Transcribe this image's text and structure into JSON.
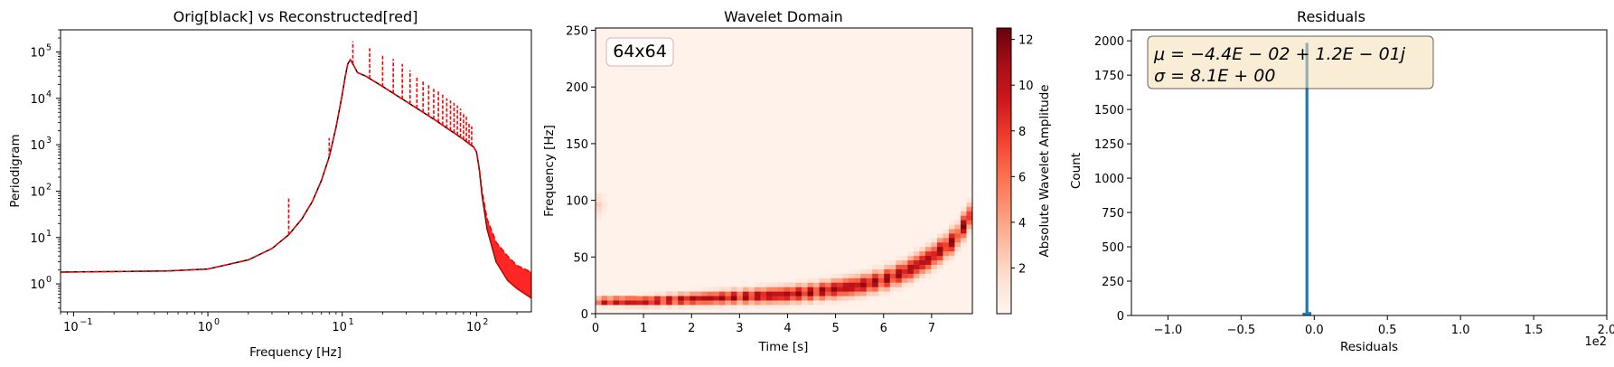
{
  "chart_data": [
    {
      "type": "line",
      "title": "Orig[black] vs Reconstructed[red]",
      "xlabel": "Frequency [Hz]",
      "ylabel": "Periodigram",
      "xscale": "log",
      "yscale": "log",
      "xlim": [
        0.08,
        256
      ],
      "ylim": [
        0.25,
        300000
      ],
      "x_ticks": [
        {
          "v": 0.1,
          "base": "10",
          "exp": "−1"
        },
        {
          "v": 1,
          "base": "10",
          "exp": "0"
        },
        {
          "v": 10,
          "base": "10",
          "exp": "1"
        },
        {
          "v": 100,
          "base": "10",
          "exp": "2"
        }
      ],
      "y_ticks": [
        {
          "v": 1,
          "base": "10",
          "exp": "0"
        },
        {
          "v": 10,
          "base": "10",
          "exp": "1"
        },
        {
          "v": 100,
          "base": "10",
          "exp": "2"
        },
        {
          "v": 1000,
          "base": "10",
          "exp": "3"
        },
        {
          "v": 10000,
          "base": "10",
          "exp": "4"
        },
        {
          "v": 100000,
          "base": "10",
          "exp": "5"
        }
      ],
      "series": [
        {
          "color": "#000000",
          "style": "solid",
          "x": [
            0.08,
            0.5,
            1,
            2,
            3,
            4,
            5,
            6,
            7,
            8,
            9,
            10,
            10.5,
            11,
            11.5,
            12,
            13,
            15,
            20,
            30,
            40,
            50,
            60,
            70,
            80,
            90,
            95,
            100,
            105,
            110,
            120,
            140,
            170,
            200,
            256
          ],
          "y": [
            1.8,
            1.9,
            2.1,
            3.3,
            5.8,
            11.5,
            25,
            60,
            170,
            550,
            2400,
            12000,
            28000,
            55000,
            68000,
            55000,
            36000,
            30000,
            18000,
            8500,
            5000,
            3300,
            2300,
            1700,
            1300,
            1000,
            900,
            700,
            280,
            80,
            15,
            3,
            1.2,
            0.8,
            0.5
          ]
        },
        {
          "color": "#ff0000",
          "style": "dashed",
          "x": [
            0.08,
            0.5,
            1,
            2,
            3,
            4,
            5,
            6,
            7,
            8,
            9,
            10,
            10.5,
            11,
            11.5,
            12,
            13,
            15,
            20,
            30,
            40,
            50,
            60,
            70,
            80,
            90,
            95,
            100,
            105,
            110,
            120,
            140,
            170,
            200,
            256
          ],
          "y": [
            1.8,
            1.9,
            2.1,
            3.3,
            5.8,
            11.5,
            25,
            60,
            170,
            550,
            2400,
            12000,
            28000,
            55000,
            68000,
            55000,
            36000,
            30000,
            18000,
            8500,
            5000,
            3300,
            2300,
            1700,
            1300,
            1000,
            900,
            700,
            300,
            100,
            25,
            8,
            4,
            2.5,
            1.8
          ],
          "spikes": [
            [
              4,
              70
            ],
            [
              8,
              1400
            ],
            [
              12,
              170000
            ],
            [
              16,
              120000
            ],
            [
              20,
              90000
            ],
            [
              24,
              70000
            ],
            [
              28,
              55000
            ],
            [
              32,
              40000
            ],
            [
              36,
              30000
            ],
            [
              40,
              25000
            ],
            [
              44,
              20000
            ],
            [
              48,
              16000
            ],
            [
              52,
              14000
            ],
            [
              56,
              12000
            ],
            [
              60,
              10000
            ],
            [
              64,
              9000
            ],
            [
              68,
              8000
            ],
            [
              72,
              7000
            ],
            [
              76,
              6000
            ],
            [
              80,
              5000
            ],
            [
              84,
              4000
            ],
            [
              88,
              3000
            ],
            [
              92,
              2500
            ]
          ]
        }
      ]
    },
    {
      "type": "heatmap",
      "title": "Wavelet Domain",
      "xlabel": "Time [s]",
      "ylabel": "Frequency [Hz]",
      "xlim": [
        0,
        7.85
      ],
      "ylim": [
        0,
        252
      ],
      "x_ticks": [
        "0",
        "1",
        "2",
        "3",
        "4",
        "5",
        "6",
        "7"
      ],
      "y_ticks": [
        "0",
        "50",
        "100",
        "150",
        "200",
        "250"
      ],
      "grid": "64x64",
      "annotation": "64x64",
      "colormap": "Reds",
      "colorbar_label": "Absolute Wavelet Amplitude",
      "colorbar_range": [
        0,
        12.5
      ],
      "colorbar_ticks": [
        "2",
        "4",
        "6",
        "8",
        "10",
        "12"
      ],
      "ridge": [
        [
          0.06,
          11
        ],
        [
          0.5,
          11
        ],
        [
          1.0,
          11
        ],
        [
          1.5,
          12
        ],
        [
          2.0,
          13
        ],
        [
          2.5,
          14
        ],
        [
          3.0,
          15
        ],
        [
          3.5,
          16
        ],
        [
          4.0,
          17
        ],
        [
          4.5,
          19
        ],
        [
          5.0,
          22
        ],
        [
          5.5,
          25
        ],
        [
          6.0,
          30
        ],
        [
          6.5,
          38
        ],
        [
          7.0,
          50
        ],
        [
          7.5,
          66
        ],
        [
          7.85,
          90
        ]
      ],
      "ridge_peak": 12,
      "edge_blobs": [
        [
          0.05,
          95,
          2.5
        ],
        [
          0.05,
          103,
          1.5
        ],
        [
          0.05,
          87,
          1.2
        ]
      ]
    },
    {
      "type": "bar",
      "title": "Residuals",
      "xlabel": "Residuals",
      "ylabel": "Count",
      "xlim": [
        -1.25,
        2.0
      ],
      "ylim": [
        0,
        2080
      ],
      "x_ticks": [
        "−1.0",
        "−0.5",
        "0.0",
        "0.5",
        "1.0",
        "1.5",
        "2.0"
      ],
      "y_ticks": [
        "0",
        "250",
        "500",
        "750",
        "1000",
        "1250",
        "1500",
        "1750",
        "2000"
      ],
      "offset_text": "1e2",
      "bin_width": 0.02,
      "bins": [
        [
          -0.08,
          20
        ],
        [
          -0.06,
          1985
        ],
        [
          -0.04,
          25
        ]
      ],
      "color": "#1f77b4",
      "stats_line1": "μ = −4.4E − 02 + 1.2E − 01j",
      "stats_line2": "σ = 8.1E + 00"
    }
  ]
}
